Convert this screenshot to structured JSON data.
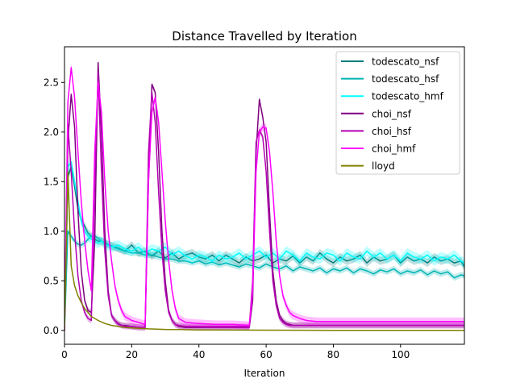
{
  "chart_data": {
    "type": "line",
    "title": "Distance Travelled by Iteration",
    "xlabel": "Iteration",
    "ylabel": "",
    "xlim": [
      0,
      119
    ],
    "ylim": [
      -0.14,
      2.86
    ],
    "xticks": [
      0,
      20,
      40,
      60,
      80,
      100
    ],
    "xtick_labels": [
      "0",
      "20",
      "40",
      "60",
      "80",
      "100"
    ],
    "yticks": [
      0.0,
      0.5,
      1.0,
      1.5,
      2.0,
      2.5
    ],
    "ytick_labels": [
      "0.0",
      "0.5",
      "1.0",
      "1.5",
      "2.0",
      "2.5"
    ],
    "grid": false,
    "legend_position": "upper-right",
    "series": [
      {
        "name": "todescato_nsf",
        "color": "#007a7a",
        "x": [
          0,
          1,
          2,
          3,
          4,
          5,
          6,
          7,
          8,
          9,
          10,
          11,
          12,
          14,
          16,
          18,
          20,
          22,
          24,
          26,
          28,
          30,
          32,
          34,
          36,
          38,
          40,
          42,
          44,
          46,
          48,
          50,
          52,
          54,
          56,
          58,
          60,
          62,
          64,
          66,
          68,
          70,
          72,
          74,
          76,
          78,
          80,
          82,
          84,
          86,
          88,
          90,
          92,
          94,
          96,
          98,
          100,
          102,
          104,
          106,
          108,
          110,
          112,
          114,
          116,
          118,
          119
        ],
        "y": [
          0.0,
          1.55,
          1.65,
          1.45,
          1.22,
          1.12,
          1.05,
          0.98,
          0.95,
          0.92,
          0.9,
          0.9,
          0.88,
          0.85,
          0.83,
          0.8,
          0.86,
          0.78,
          0.8,
          0.75,
          0.8,
          0.73,
          0.78,
          0.72,
          0.76,
          0.78,
          0.74,
          0.72,
          0.76,
          0.7,
          0.76,
          0.72,
          0.68,
          0.74,
          0.7,
          0.72,
          0.76,
          0.68,
          0.72,
          0.7,
          0.75,
          0.68,
          0.74,
          0.7,
          0.78,
          0.72,
          0.68,
          0.74,
          0.7,
          0.72,
          0.76,
          0.68,
          0.74,
          0.7,
          0.72,
          0.76,
          0.68,
          0.74,
          0.7,
          0.72,
          0.68,
          0.74,
          0.7,
          0.72,
          0.68,
          0.7,
          0.64
        ],
        "band": 0.04
      },
      {
        "name": "todescato_hsf",
        "color": "#00b3b3",
        "x": [
          0,
          1,
          2,
          3,
          4,
          5,
          6,
          7,
          8,
          9,
          10,
          11,
          12,
          14,
          16,
          18,
          20,
          22,
          24,
          26,
          28,
          30,
          32,
          34,
          36,
          38,
          40,
          42,
          44,
          46,
          48,
          50,
          52,
          54,
          56,
          58,
          60,
          62,
          64,
          66,
          68,
          70,
          72,
          74,
          76,
          78,
          80,
          82,
          84,
          86,
          88,
          90,
          92,
          94,
          96,
          98,
          100,
          102,
          104,
          106,
          108,
          110,
          112,
          114,
          116,
          118,
          119
        ],
        "y": [
          0.0,
          1.0,
          0.95,
          0.9,
          0.87,
          0.86,
          0.88,
          0.92,
          0.95,
          0.95,
          0.93,
          0.9,
          0.88,
          0.85,
          0.82,
          0.8,
          0.78,
          0.78,
          0.76,
          0.76,
          0.74,
          0.72,
          0.72,
          0.7,
          0.7,
          0.68,
          0.7,
          0.67,
          0.69,
          0.66,
          0.68,
          0.66,
          0.64,
          0.67,
          0.65,
          0.63,
          0.67,
          0.64,
          0.62,
          0.65,
          0.6,
          0.64,
          0.62,
          0.6,
          0.63,
          0.58,
          0.62,
          0.6,
          0.63,
          0.58,
          0.62,
          0.6,
          0.57,
          0.61,
          0.59,
          0.62,
          0.57,
          0.6,
          0.58,
          0.61,
          0.56,
          0.6,
          0.57,
          0.59,
          0.53,
          0.56,
          0.55
        ],
        "band": 0.03
      },
      {
        "name": "todescato_hmf",
        "color": "#00ffff",
        "x": [
          0,
          1,
          2,
          3,
          4,
          5,
          6,
          7,
          8,
          9,
          10,
          11,
          12,
          14,
          16,
          18,
          20,
          22,
          24,
          26,
          28,
          30,
          32,
          34,
          36,
          38,
          40,
          42,
          44,
          46,
          48,
          50,
          52,
          54,
          56,
          58,
          60,
          62,
          64,
          66,
          68,
          70,
          72,
          74,
          76,
          78,
          80,
          82,
          84,
          86,
          88,
          90,
          92,
          94,
          96,
          98,
          100,
          102,
          104,
          106,
          108,
          110,
          112,
          114,
          116,
          118,
          119
        ],
        "y": [
          0.0,
          1.65,
          1.7,
          1.5,
          1.3,
          1.1,
          1.0,
          0.95,
          0.92,
          0.9,
          0.88,
          0.9,
          0.87,
          0.84,
          0.86,
          0.82,
          0.8,
          0.84,
          0.78,
          0.82,
          0.8,
          0.84,
          0.76,
          0.8,
          0.75,
          0.72,
          0.76,
          0.74,
          0.7,
          0.76,
          0.72,
          0.74,
          0.78,
          0.72,
          0.76,
          0.8,
          0.74,
          0.78,
          0.72,
          0.8,
          0.76,
          0.7,
          0.78,
          0.74,
          0.72,
          0.78,
          0.76,
          0.7,
          0.78,
          0.74,
          0.72,
          0.8,
          0.74,
          0.78,
          0.72,
          0.76,
          0.7,
          0.78,
          0.74,
          0.72,
          0.76,
          0.7,
          0.74,
          0.72,
          0.76,
          0.7,
          0.68
        ],
        "band": 0.05
      },
      {
        "name": "choi_nsf",
        "color": "#800080",
        "x": [
          0,
          1,
          2,
          3,
          4,
          5,
          6,
          7,
          8,
          9,
          10,
          11,
          12,
          13,
          14,
          15,
          16,
          17,
          18,
          20,
          22,
          24,
          25,
          26,
          27,
          28,
          29,
          30,
          31,
          32,
          33,
          34,
          36,
          40,
          45,
          50,
          55,
          56,
          57,
          58,
          59,
          60,
          61,
          62,
          63,
          64,
          65,
          66,
          67,
          68,
          70,
          75,
          80,
          90,
          100,
          110,
          119
        ],
        "y": [
          0.0,
          1.9,
          2.38,
          2.05,
          1.2,
          0.6,
          0.3,
          0.2,
          0.18,
          0.9,
          2.7,
          2.0,
          1.0,
          0.4,
          0.15,
          0.1,
          0.07,
          0.05,
          0.05,
          0.04,
          0.03,
          0.03,
          1.5,
          2.48,
          2.4,
          1.8,
          1.0,
          0.5,
          0.2,
          0.1,
          0.06,
          0.04,
          0.03,
          0.03,
          0.03,
          0.03,
          0.03,
          0.3,
          1.8,
          2.33,
          2.15,
          1.9,
          1.2,
          0.6,
          0.3,
          0.15,
          0.1,
          0.07,
          0.06,
          0.05,
          0.05,
          0.05,
          0.05,
          0.05,
          0.05,
          0.05,
          0.05
        ],
        "band": 0.03
      },
      {
        "name": "choi_hsf",
        "color": "#b300b3",
        "x": [
          0,
          1,
          2,
          3,
          4,
          5,
          6,
          7,
          8,
          9,
          10,
          11,
          12,
          13,
          14,
          15,
          16,
          17,
          18,
          20,
          22,
          24,
          25,
          26,
          27,
          28,
          29,
          30,
          31,
          32,
          33,
          34,
          36,
          40,
          45,
          50,
          55,
          56,
          57,
          58,
          59,
          60,
          61,
          62,
          63,
          64,
          65,
          66,
          67,
          68,
          70,
          75,
          80,
          90,
          100,
          110,
          119
        ],
        "y": [
          0.0,
          2.08,
          1.6,
          1.0,
          0.55,
          0.3,
          0.18,
          0.12,
          0.1,
          1.5,
          2.6,
          1.6,
          0.8,
          0.35,
          0.15,
          0.1,
          0.06,
          0.05,
          0.04,
          0.04,
          0.03,
          0.03,
          1.8,
          2.4,
          2.1,
          1.4,
          0.8,
          0.4,
          0.18,
          0.1,
          0.06,
          0.05,
          0.04,
          0.04,
          0.04,
          0.04,
          0.04,
          0.5,
          1.9,
          2.02,
          1.95,
          1.6,
          1.0,
          0.5,
          0.25,
          0.12,
          0.08,
          0.06,
          0.05,
          0.05,
          0.05,
          0.05,
          0.05,
          0.05,
          0.05,
          0.05,
          0.05
        ],
        "band": 0.03
      },
      {
        "name": "choi_hmf",
        "color": "#ff00ff",
        "x": [
          0,
          1,
          2,
          3,
          4,
          5,
          6,
          7,
          8,
          9,
          10,
          11,
          12,
          13,
          14,
          15,
          16,
          17,
          18,
          20,
          22,
          24,
          25,
          26,
          27,
          28,
          29,
          30,
          31,
          32,
          33,
          34,
          36,
          40,
          45,
          50,
          55,
          56,
          57,
          58,
          59,
          60,
          61,
          62,
          63,
          64,
          65,
          66,
          67,
          68,
          70,
          72,
          75,
          80,
          90,
          100,
          110,
          119
        ],
        "y": [
          0.0,
          2.3,
          2.65,
          2.35,
          1.8,
          1.3,
          0.9,
          0.6,
          0.4,
          1.8,
          2.5,
          2.2,
          1.5,
          1.0,
          0.7,
          0.45,
          0.3,
          0.2,
          0.14,
          0.1,
          0.08,
          0.06,
          1.5,
          2.2,
          2.35,
          2.1,
          1.6,
          1.1,
          0.7,
          0.4,
          0.22,
          0.12,
          0.08,
          0.07,
          0.06,
          0.06,
          0.05,
          0.4,
          1.6,
          2.0,
          2.05,
          2.04,
          1.8,
          1.4,
          0.9,
          0.55,
          0.35,
          0.25,
          0.18,
          0.15,
          0.12,
          0.1,
          0.09,
          0.09,
          0.09,
          0.09,
          0.09,
          0.09
        ],
        "band": 0.04
      },
      {
        "name": "lloyd",
        "color": "#808000",
        "x": [
          0,
          1,
          2,
          3,
          4,
          5,
          6,
          7,
          8,
          9,
          10,
          12,
          14,
          16,
          18,
          20,
          25,
          30,
          35,
          40,
          50,
          60,
          80,
          100,
          119
        ],
        "y": [
          0.0,
          1.6,
          0.65,
          0.45,
          0.35,
          0.28,
          0.22,
          0.18,
          0.14,
          0.12,
          0.1,
          0.07,
          0.05,
          0.04,
          0.03,
          0.025,
          0.015,
          0.01,
          0.008,
          0.005,
          0.003,
          0.002,
          0.001,
          0.001,
          0.001
        ],
        "band": 0.0
      }
    ]
  }
}
